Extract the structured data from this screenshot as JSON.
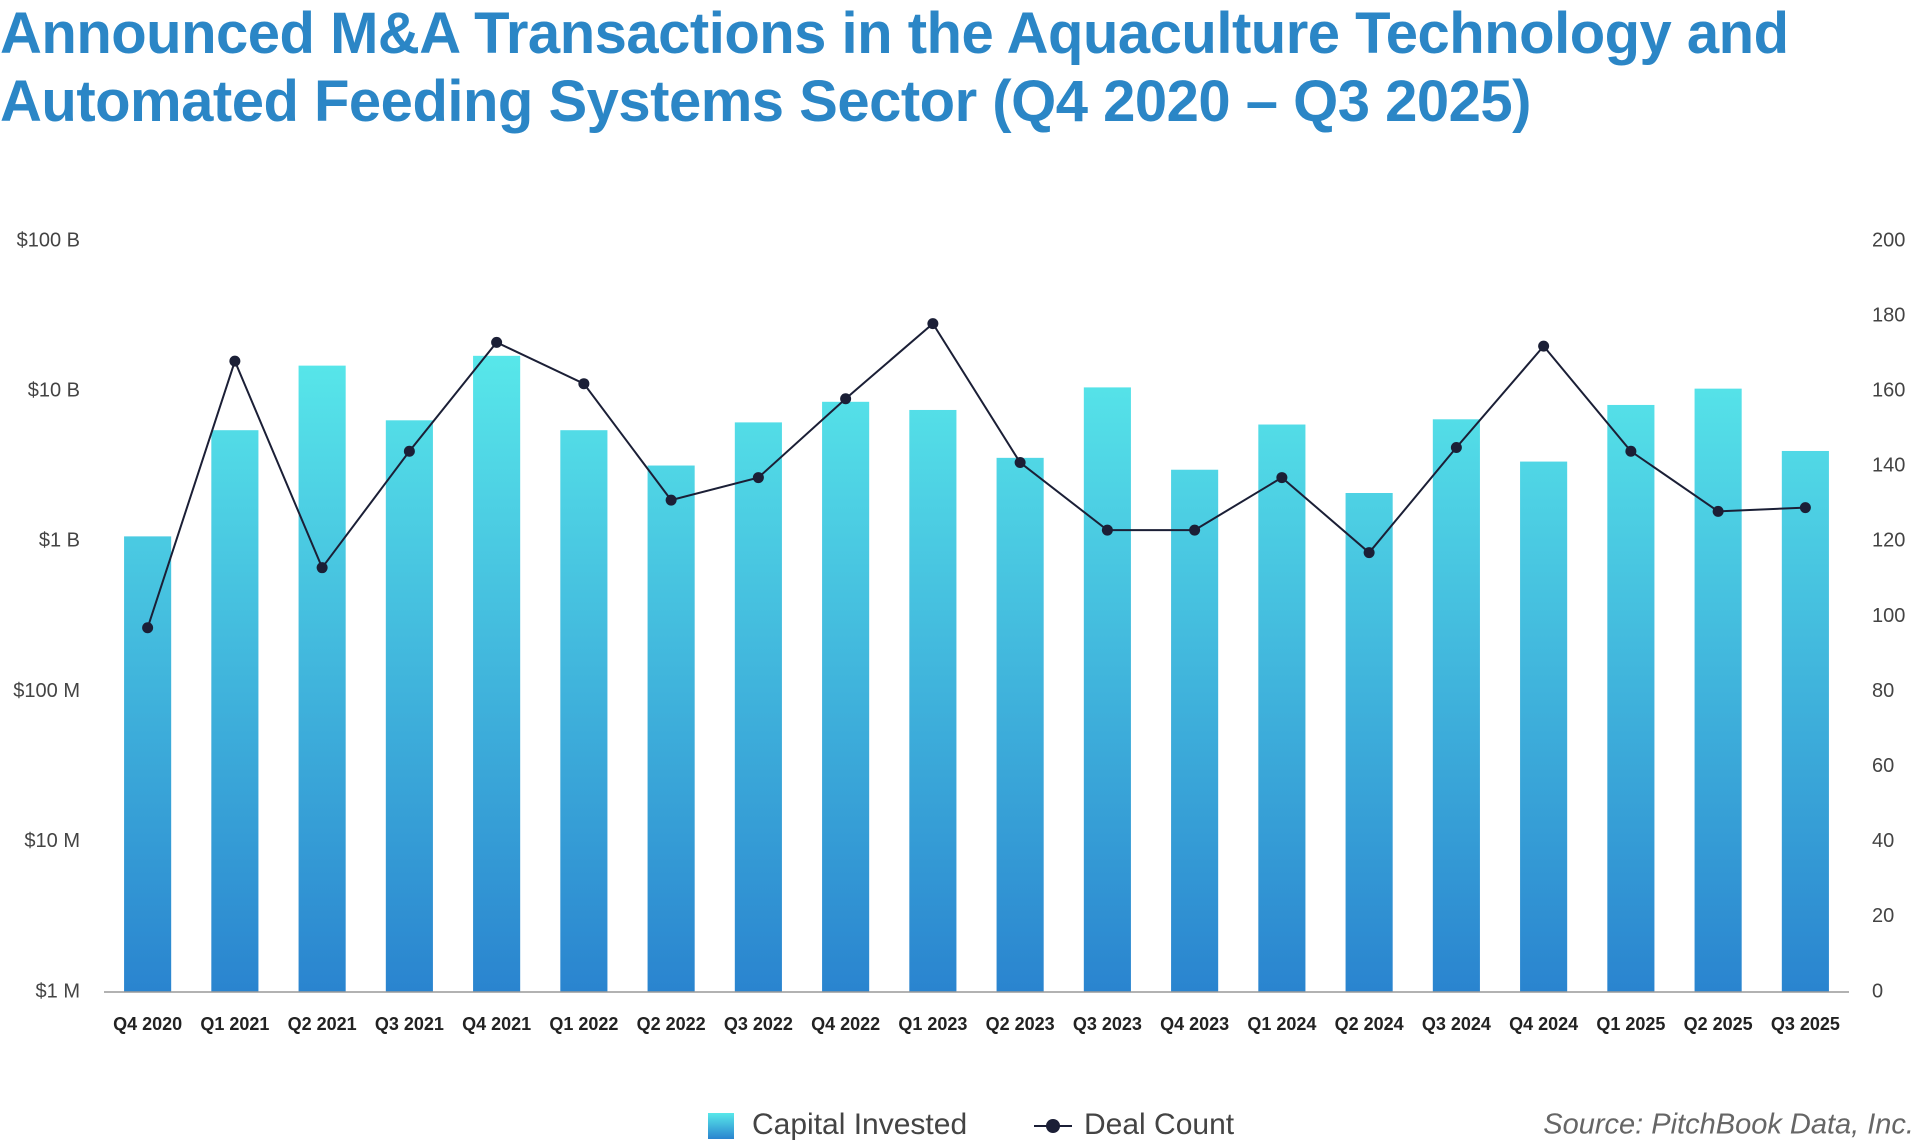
{
  "chart_data": {
    "type": "bar-line",
    "title": "Announced M&A Transactions in the Aquaculture Technology and Automated Feeding Systems Sector (Q4 2020 – Q3 2025)",
    "source": "Source: PitchBook Data, Inc.",
    "categories": [
      "Q4 2020",
      "Q1 2021",
      "Q2 2021",
      "Q3 2021",
      "Q4 2021",
      "Q1 2022",
      "Q2 2022",
      "Q3 2022",
      "Q4 2022",
      "Q1 2023",
      "Q2 2023",
      "Q3 2023",
      "Q4 2023",
      "Q1 2024",
      "Q2 2024",
      "Q3 2024",
      "Q4 2024",
      "Q1 2025",
      "Q2 2025",
      "Q3 2025"
    ],
    "series": [
      {
        "name": "Capital Invested",
        "type": "bar",
        "color": "#2a84cf",
        "values": [
          1080000000,
          5500000000,
          14800000000,
          6400000000,
          17200000000,
          5500000000,
          3200000000,
          6200000000,
          8500000000,
          7500000000,
          3600000000,
          10600000000,
          3000000000,
          6000000000,
          2100000000,
          6500000000,
          3400000000,
          8100000000,
          10400000000,
          4000000000
        ]
      },
      {
        "name": "Deal Count",
        "type": "line",
        "axis": "y2",
        "color": "#1b1f36",
        "values": [
          97,
          168,
          113,
          144,
          173,
          162,
          131,
          137,
          158,
          178,
          141,
          123,
          123,
          137,
          117,
          145,
          172,
          144,
          128,
          129
        ]
      }
    ],
    "ylog": true,
    "ylim": [
      1000000,
      100000000000
    ],
    "yticks": [
      {
        "value": 1000000,
        "label": "$1 M"
      },
      {
        "value": 10000000,
        "label": "$10 M"
      },
      {
        "value": 100000000,
        "label": "$100 M"
      },
      {
        "value": 1000000000,
        "label": "$1 B"
      },
      {
        "value": 10000000000,
        "label": "$10 B"
      },
      {
        "value": 100000000000,
        "label": "$100 B"
      }
    ],
    "y2lim": [
      0,
      200
    ],
    "y2ticks": [
      0,
      20,
      40,
      60,
      80,
      100,
      120,
      140,
      160,
      180,
      200
    ],
    "grid": false
  }
}
